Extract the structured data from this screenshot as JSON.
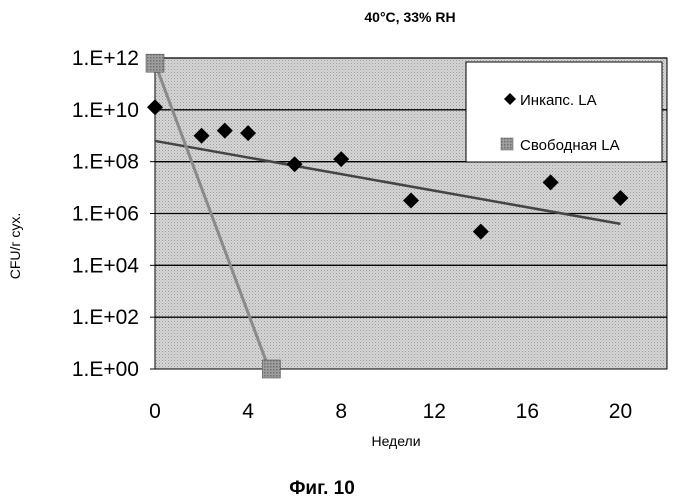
{
  "chart_data": {
    "type": "scatter",
    "title": "40°C, 33% RH",
    "xlabel": "Недели",
    "ylabel": "CFU/г сух.",
    "caption": "Фиг. 10",
    "x_ticks": [
      "0",
      "4",
      "8",
      "12",
      "16",
      "20"
    ],
    "x_tick_values": [
      0,
      4,
      8,
      12,
      16,
      20
    ],
    "xlim": [
      0,
      22
    ],
    "y_scale": "log",
    "y_ticks": [
      "1.E+12",
      "1.E+10",
      "1.E+08",
      "1.E+06",
      "1.E+04",
      "1.E+02",
      "1.E+00"
    ],
    "y_tick_exponents": [
      12,
      10,
      8,
      6,
      4,
      2,
      0
    ],
    "ylim_log10": [
      0,
      12
    ],
    "grid": true,
    "legend_position": "top-right",
    "series": [
      {
        "name": "Инкапс. LA",
        "marker": "diamond",
        "color": "#000000",
        "x": [
          0,
          2,
          3,
          4,
          6,
          8,
          11,
          14,
          17,
          20
        ],
        "y_log10": [
          10.1,
          9.0,
          9.2,
          9.1,
          7.9,
          8.1,
          6.5,
          5.3,
          7.2,
          6.6
        ],
        "trend": {
          "x": [
            0,
            20
          ],
          "y_log10": [
            8.8,
            5.6
          ],
          "color": "#444444"
        }
      },
      {
        "name": "Свободная LA",
        "marker": "square",
        "color": "#888888",
        "x": [
          0,
          5
        ],
        "y_log10": [
          11.8,
          0
        ],
        "trend": {
          "x": [
            0,
            4.9
          ],
          "y_log10": [
            11.8,
            0
          ],
          "color": "#8a8a8a"
        }
      }
    ]
  }
}
